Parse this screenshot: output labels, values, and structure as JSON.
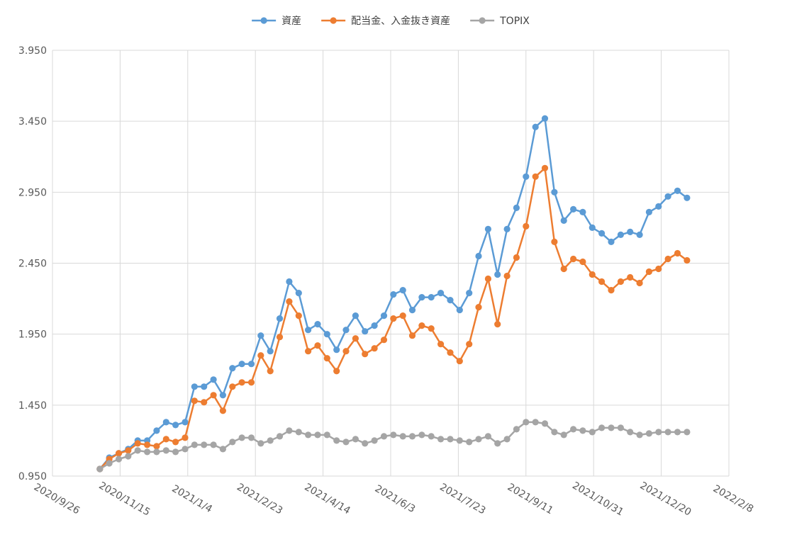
{
  "chart_data": {
    "type": "line",
    "title": "",
    "xlabel": "",
    "ylabel": "",
    "grid": true,
    "legend_position": "top",
    "ylim": [
      0.95,
      3.95
    ],
    "y_ticks": [
      "0.950",
      "1.450",
      "1.950",
      "2.450",
      "2.950",
      "3.450",
      "3.950"
    ],
    "x_ticks": [
      "2020/9/26",
      "2020/11/15",
      "2021/1/4",
      "2021/2/23",
      "2021/4/14",
      "2021/6/3",
      "2021/7/23",
      "2021/9/11",
      "2021/10/31",
      "2021/12/20",
      "2022/2/8"
    ],
    "x_range": [
      "2020/9/26",
      "2022/2/8"
    ],
    "x": [
      "2020/10/31",
      "2020/11/7",
      "2020/11/14",
      "2020/11/21",
      "2020/11/28",
      "2020/12/5",
      "2020/12/12",
      "2020/12/19",
      "2020/12/26",
      "2021/1/2",
      "2021/1/9",
      "2021/1/16",
      "2021/1/23",
      "2021/1/30",
      "2021/2/6",
      "2021/2/13",
      "2021/2/20",
      "2021/2/27",
      "2021/3/6",
      "2021/3/13",
      "2021/3/20",
      "2021/3/27",
      "2021/4/3",
      "2021/4/10",
      "2021/4/17",
      "2021/4/24",
      "2021/5/1",
      "2021/5/8",
      "2021/5/15",
      "2021/5/22",
      "2021/5/29",
      "2021/6/5",
      "2021/6/12",
      "2021/6/19",
      "2021/6/26",
      "2021/7/3",
      "2021/7/10",
      "2021/7/17",
      "2021/7/24",
      "2021/7/31",
      "2021/8/7",
      "2021/8/14",
      "2021/8/21",
      "2021/8/28",
      "2021/9/4",
      "2021/9/11",
      "2021/9/18",
      "2021/9/25",
      "2021/10/2",
      "2021/10/9",
      "2021/10/16",
      "2021/10/23",
      "2021/10/30",
      "2021/11/6",
      "2021/11/13",
      "2021/11/20",
      "2021/11/27",
      "2021/12/4",
      "2021/12/11",
      "2021/12/18",
      "2021/12/25",
      "2022/1/1",
      "2022/1/8"
    ],
    "series": [
      {
        "name": "資産",
        "color": "#5B9BD5",
        "values": [
          1.0,
          1.08,
          1.11,
          1.14,
          1.2,
          1.2,
          1.27,
          1.33,
          1.31,
          1.33,
          1.58,
          1.58,
          1.63,
          1.52,
          1.71,
          1.74,
          1.74,
          1.94,
          1.83,
          2.06,
          2.32,
          2.24,
          1.98,
          2.02,
          1.95,
          1.84,
          1.98,
          2.08,
          1.97,
          2.01,
          2.08,
          2.23,
          2.26,
          2.12,
          2.21,
          2.21,
          2.24,
          2.19,
          2.12,
          2.24,
          2.5,
          2.69,
          2.37,
          2.69,
          2.84,
          3.06,
          3.41,
          3.47,
          2.95,
          2.75,
          2.83,
          2.81,
          2.7,
          2.66,
          2.6,
          2.65,
          2.67,
          2.65,
          2.81,
          2.85,
          2.92,
          2.96,
          2.91
        ]
      },
      {
        "name": "配当金、入金抜き資産",
        "color": "#ED7D31",
        "values": [
          1.0,
          1.07,
          1.11,
          1.13,
          1.18,
          1.17,
          1.16,
          1.21,
          1.19,
          1.22,
          1.48,
          1.47,
          1.52,
          1.41,
          1.58,
          1.61,
          1.61,
          1.8,
          1.69,
          1.93,
          2.18,
          2.08,
          1.83,
          1.87,
          1.78,
          1.69,
          1.83,
          1.92,
          1.81,
          1.85,
          1.91,
          2.06,
          2.08,
          1.94,
          2.01,
          1.99,
          1.88,
          1.82,
          1.76,
          1.88,
          2.14,
          2.34,
          2.02,
          2.36,
          2.49,
          2.71,
          3.06,
          3.12,
          2.6,
          2.41,
          2.48,
          2.46,
          2.37,
          2.32,
          2.26,
          2.32,
          2.35,
          2.31,
          2.39,
          2.41,
          2.48,
          2.52,
          2.47
        ]
      },
      {
        "name": "TOPIX",
        "color": "#A5A5A5",
        "values": [
          1.0,
          1.04,
          1.07,
          1.09,
          1.13,
          1.12,
          1.12,
          1.13,
          1.12,
          1.14,
          1.17,
          1.17,
          1.17,
          1.14,
          1.19,
          1.22,
          1.22,
          1.18,
          1.2,
          1.23,
          1.27,
          1.26,
          1.24,
          1.24,
          1.24,
          1.2,
          1.19,
          1.21,
          1.18,
          1.2,
          1.23,
          1.24,
          1.23,
          1.23,
          1.24,
          1.23,
          1.21,
          1.21,
          1.2,
          1.19,
          1.21,
          1.23,
          1.18,
          1.21,
          1.28,
          1.33,
          1.33,
          1.32,
          1.26,
          1.24,
          1.28,
          1.27,
          1.26,
          1.29,
          1.29,
          1.29,
          1.26,
          1.24,
          1.25,
          1.26,
          1.26,
          1.26,
          1.26
        ]
      }
    ]
  }
}
